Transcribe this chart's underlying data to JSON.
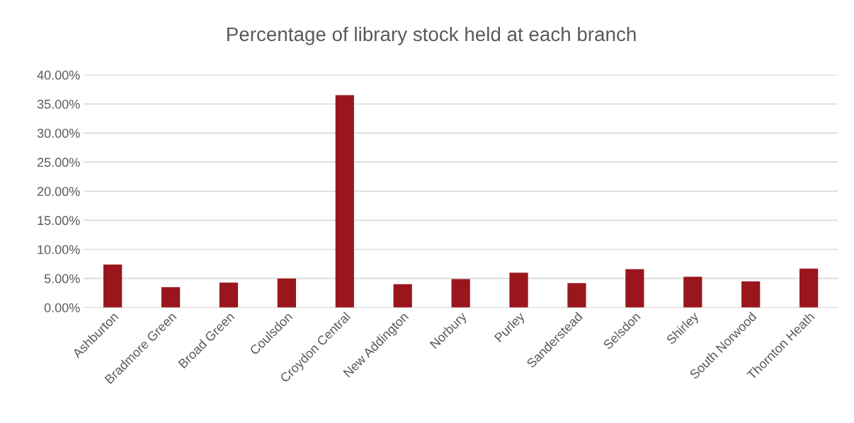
{
  "chart_data": {
    "type": "bar",
    "title": "Percentage of library stock held at each branch",
    "categories": [
      "Ashburton",
      "Bradmore Green",
      "Broad Green",
      "Coulsdon",
      "Croydon Central",
      "New Addington",
      "Norbury",
      "Purley",
      "Sanderstead",
      "Selsdon",
      "Shirley",
      "South Norwood",
      "Thornton Heath"
    ],
    "values": [
      7.4,
      3.5,
      4.3,
      5.0,
      36.5,
      4.0,
      4.9,
      6.0,
      4.2,
      6.6,
      5.3,
      4.5,
      6.7
    ],
    "color": "#9a161d",
    "ylim": [
      0,
      40
    ],
    "yticks": [
      {
        "value": 0,
        "label": "0.00%"
      },
      {
        "value": 5,
        "label": "5.00%"
      },
      {
        "value": 10,
        "label": "10.00%"
      },
      {
        "value": 15,
        "label": "15.00%"
      },
      {
        "value": 20,
        "label": "20.00%"
      },
      {
        "value": 25,
        "label": "25.00%"
      },
      {
        "value": 30,
        "label": "30.00%"
      },
      {
        "value": 35,
        "label": "35.00%"
      },
      {
        "value": 40,
        "label": "40.00%"
      }
    ],
    "grid": "y"
  }
}
